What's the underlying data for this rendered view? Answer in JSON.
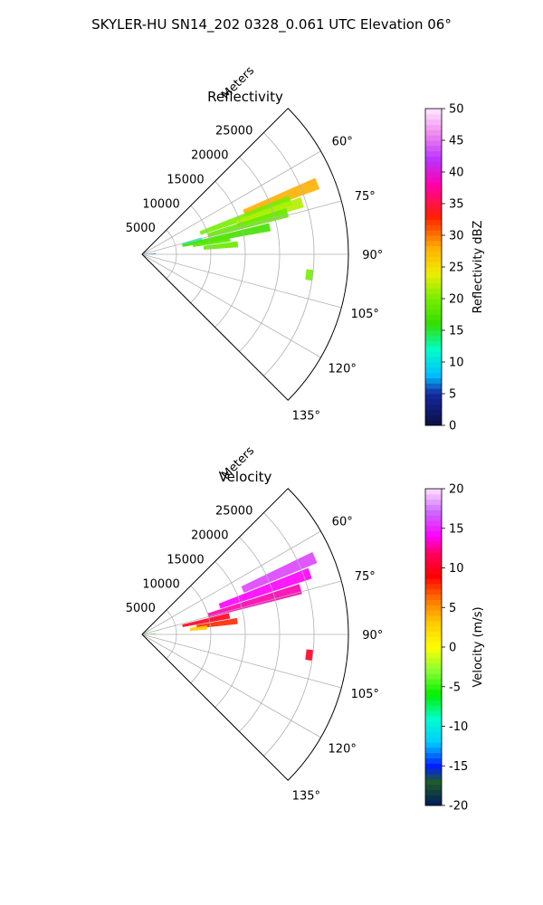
{
  "figure_title": "SKYLER-HU  SN14_202  0328_0.061 UTC Elevation 06°",
  "chart_data": [
    {
      "type": "polar-sector-heatmap",
      "title": "Reflectivity",
      "radial_label": "Meters",
      "radial_ticks": [
        5000,
        10000,
        15000,
        20000,
        25000
      ],
      "radial_range": [
        0,
        30000
      ],
      "angle_ticks": [
        "60°",
        "75°",
        "90°",
        "105°",
        "120°",
        "135°"
      ],
      "angle_range_deg": [
        45,
        135
      ],
      "grid": true,
      "colorbar": {
        "label": "Reflectivity dBZ",
        "range": [
          0,
          50
        ],
        "ticks": [
          0,
          5,
          10,
          15,
          20,
          25,
          30,
          35,
          40,
          45,
          50
        ],
        "colormap": "pyart_NWSRef"
      },
      "echoes": [
        {
          "az": 68,
          "r0": 16000,
          "r1": 27500,
          "value": 28
        },
        {
          "az": 70,
          "r0": 9000,
          "r1": 23000,
          "value": 20
        },
        {
          "az": 72,
          "r0": 14500,
          "r1": 24500,
          "value": 22
        },
        {
          "az": 74,
          "r0": 10000,
          "r1": 22000,
          "value": 19
        },
        {
          "az": 76,
          "r0": 6000,
          "r1": 9000,
          "value": 12
        },
        {
          "az": 78,
          "r0": 6000,
          "r1": 19000,
          "value": 17
        },
        {
          "az": 80,
          "r0": 7500,
          "r1": 13000,
          "value": 18
        },
        {
          "az": 84,
          "r0": 9000,
          "r1": 14000,
          "value": 19
        },
        {
          "az": 87,
          "r0": 500,
          "r1": 2000,
          "value": 7
        },
        {
          "az": 97,
          "r0": 24000,
          "r1": 25000,
          "value": 20
        }
      ]
    },
    {
      "type": "polar-sector-heatmap",
      "title": "Velocity",
      "radial_label": "Meters",
      "radial_ticks": [
        5000,
        10000,
        15000,
        20000,
        25000
      ],
      "radial_range": [
        0,
        30000
      ],
      "angle_ticks": [
        "60°",
        "75°",
        "90°",
        "105°",
        "120°",
        "135°"
      ],
      "angle_range_deg": [
        45,
        135
      ],
      "grid": true,
      "colorbar": {
        "label": "Velocity (m/s)",
        "range": [
          -20,
          20
        ],
        "ticks": [
          -20,
          -15,
          -10,
          -5,
          0,
          5,
          10,
          15,
          20
        ],
        "colormap": "pyart_NWSVel"
      },
      "echoes": [
        {
          "az": 66,
          "r0": 16000,
          "r1": 27500,
          "value": 16
        },
        {
          "az": 70,
          "r0": 12000,
          "r1": 26000,
          "value": 14
        },
        {
          "az": 74,
          "r0": 10000,
          "r1": 24000,
          "value": 13
        },
        {
          "az": 78,
          "r0": 6000,
          "r1": 13000,
          "value": 10
        },
        {
          "az": 82,
          "r0": 8000,
          "r1": 14000,
          "value": 8
        },
        {
          "az": 84,
          "r0": 7000,
          "r1": 9500,
          "value": 3
        },
        {
          "az": 87,
          "r0": 500,
          "r1": 2000,
          "value": -4
        },
        {
          "az": 97,
          "r0": 24000,
          "r1": 25000,
          "value": 10
        }
      ]
    }
  ]
}
